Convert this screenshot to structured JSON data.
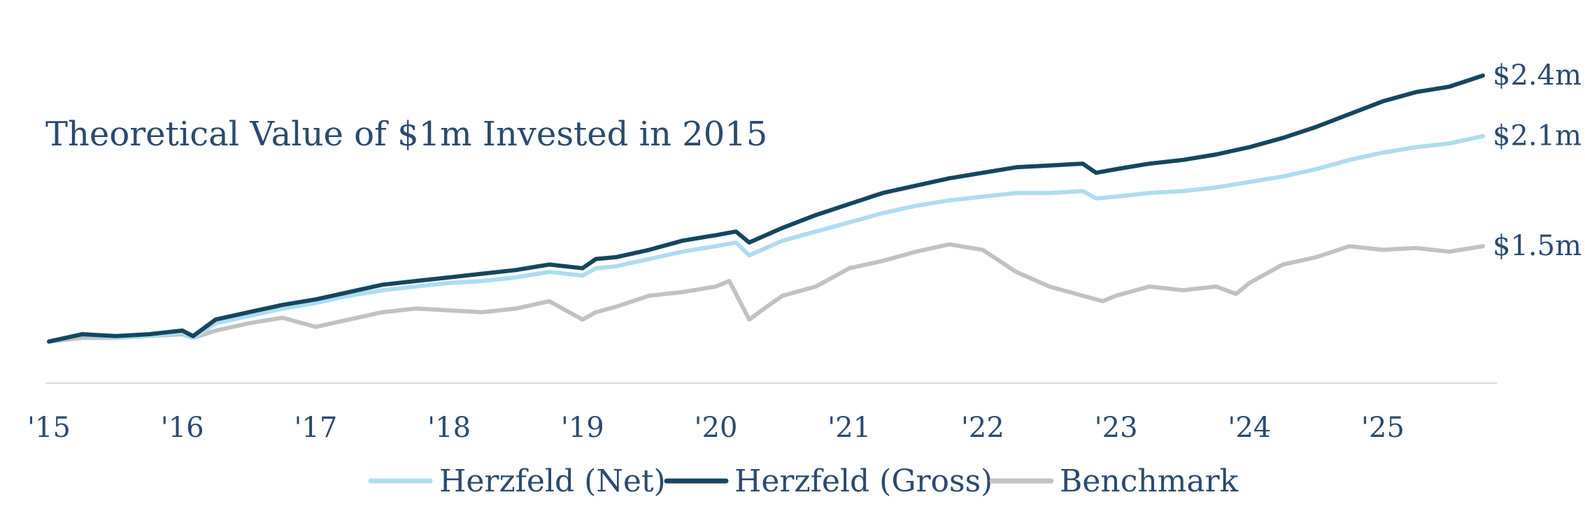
{
  "chart_data": {
    "type": "line",
    "title": "Theoretical Value of $1m Invested in 2015",
    "xlabel": "",
    "ylabel": "",
    "x_tick_labels": [
      "'15",
      "'16",
      "'17",
      "'18",
      "'19",
      "'20",
      "'21",
      "'22",
      "'23",
      "'24",
      "'25"
    ],
    "x_tick_years": [
      2015,
      2016,
      2017,
      2018,
      2019,
      2020,
      2021,
      2022,
      2023,
      2024,
      2025
    ],
    "x_range": [
      2015.0,
      2025.75
    ],
    "ylim": [
      0.85,
      2.5
    ],
    "grid": false,
    "legend_position": "bottom-center",
    "series": [
      {
        "name": "Herzfeld (Net)",
        "color": "#aedcf2",
        "end_label": "$2.1m",
        "points": [
          [
            2015.0,
            1.0
          ],
          [
            2015.25,
            1.04
          ],
          [
            2015.5,
            1.02
          ],
          [
            2015.75,
            1.03
          ],
          [
            2016.0,
            1.05
          ],
          [
            2016.08,
            1.02
          ],
          [
            2016.25,
            1.1
          ],
          [
            2016.5,
            1.14
          ],
          [
            2016.75,
            1.18
          ],
          [
            2017.0,
            1.21
          ],
          [
            2017.25,
            1.25
          ],
          [
            2017.5,
            1.28
          ],
          [
            2017.75,
            1.3
          ],
          [
            2018.0,
            1.32
          ],
          [
            2018.25,
            1.33
          ],
          [
            2018.5,
            1.35
          ],
          [
            2018.75,
            1.38
          ],
          [
            2019.0,
            1.36
          ],
          [
            2019.1,
            1.4
          ],
          [
            2019.25,
            1.41
          ],
          [
            2019.5,
            1.45
          ],
          [
            2019.75,
            1.49
          ],
          [
            2020.0,
            1.52
          ],
          [
            2020.15,
            1.54
          ],
          [
            2020.25,
            1.47
          ],
          [
            2020.5,
            1.55
          ],
          [
            2020.75,
            1.6
          ],
          [
            2021.0,
            1.65
          ],
          [
            2021.25,
            1.7
          ],
          [
            2021.5,
            1.74
          ],
          [
            2021.75,
            1.77
          ],
          [
            2022.0,
            1.79
          ],
          [
            2022.25,
            1.81
          ],
          [
            2022.5,
            1.81
          ],
          [
            2022.75,
            1.82
          ],
          [
            2022.85,
            1.78
          ],
          [
            2023.0,
            1.79
          ],
          [
            2023.25,
            1.81
          ],
          [
            2023.5,
            1.82
          ],
          [
            2023.75,
            1.84
          ],
          [
            2024.0,
            1.87
          ],
          [
            2024.25,
            1.9
          ],
          [
            2024.5,
            1.94
          ],
          [
            2024.75,
            1.99
          ],
          [
            2025.0,
            2.03
          ],
          [
            2025.25,
            2.06
          ],
          [
            2025.5,
            2.08
          ],
          [
            2025.75,
            2.12
          ]
        ]
      },
      {
        "name": "Herzfeld (Gross)",
        "color": "#15465f",
        "end_label": "$2.4m",
        "points": [
          [
            2015.0,
            1.0
          ],
          [
            2015.25,
            1.04
          ],
          [
            2015.5,
            1.03
          ],
          [
            2015.75,
            1.04
          ],
          [
            2016.0,
            1.06
          ],
          [
            2016.08,
            1.03
          ],
          [
            2016.25,
            1.12
          ],
          [
            2016.5,
            1.16
          ],
          [
            2016.75,
            1.2
          ],
          [
            2017.0,
            1.23
          ],
          [
            2017.25,
            1.27
          ],
          [
            2017.5,
            1.31
          ],
          [
            2017.75,
            1.33
          ],
          [
            2018.0,
            1.35
          ],
          [
            2018.25,
            1.37
          ],
          [
            2018.5,
            1.39
          ],
          [
            2018.75,
            1.42
          ],
          [
            2019.0,
            1.4
          ],
          [
            2019.1,
            1.45
          ],
          [
            2019.25,
            1.46
          ],
          [
            2019.5,
            1.5
          ],
          [
            2019.75,
            1.55
          ],
          [
            2020.0,
            1.58
          ],
          [
            2020.15,
            1.6
          ],
          [
            2020.25,
            1.54
          ],
          [
            2020.5,
            1.62
          ],
          [
            2020.75,
            1.69
          ],
          [
            2021.0,
            1.75
          ],
          [
            2021.25,
            1.81
          ],
          [
            2021.5,
            1.85
          ],
          [
            2021.75,
            1.89
          ],
          [
            2022.0,
            1.92
          ],
          [
            2022.25,
            1.95
          ],
          [
            2022.5,
            1.96
          ],
          [
            2022.75,
            1.97
          ],
          [
            2022.85,
            1.92
          ],
          [
            2023.0,
            1.94
          ],
          [
            2023.25,
            1.97
          ],
          [
            2023.5,
            1.99
          ],
          [
            2023.75,
            2.02
          ],
          [
            2024.0,
            2.06
          ],
          [
            2024.25,
            2.11
          ],
          [
            2024.5,
            2.17
          ],
          [
            2024.75,
            2.24
          ],
          [
            2025.0,
            2.31
          ],
          [
            2025.25,
            2.36
          ],
          [
            2025.5,
            2.39
          ],
          [
            2025.75,
            2.45
          ]
        ]
      },
      {
        "name": "Benchmark",
        "color": "#c2c2c2",
        "end_label": "$1.5m",
        "points": [
          [
            2015.0,
            1.0
          ],
          [
            2015.25,
            1.02
          ],
          [
            2015.5,
            1.02
          ],
          [
            2015.75,
            1.03
          ],
          [
            2016.0,
            1.04
          ],
          [
            2016.08,
            1.02
          ],
          [
            2016.25,
            1.06
          ],
          [
            2016.5,
            1.1
          ],
          [
            2016.75,
            1.13
          ],
          [
            2017.0,
            1.08
          ],
          [
            2017.25,
            1.12
          ],
          [
            2017.5,
            1.16
          ],
          [
            2017.75,
            1.18
          ],
          [
            2018.0,
            1.17
          ],
          [
            2018.25,
            1.16
          ],
          [
            2018.5,
            1.18
          ],
          [
            2018.75,
            1.22
          ],
          [
            2019.0,
            1.12
          ],
          [
            2019.1,
            1.16
          ],
          [
            2019.25,
            1.19
          ],
          [
            2019.5,
            1.25
          ],
          [
            2019.75,
            1.27
          ],
          [
            2020.0,
            1.3
          ],
          [
            2020.1,
            1.33
          ],
          [
            2020.25,
            1.12
          ],
          [
            2020.4,
            1.2
          ],
          [
            2020.5,
            1.25
          ],
          [
            2020.75,
            1.3
          ],
          [
            2021.0,
            1.4
          ],
          [
            2021.25,
            1.44
          ],
          [
            2021.5,
            1.49
          ],
          [
            2021.75,
            1.53
          ],
          [
            2022.0,
            1.5
          ],
          [
            2022.25,
            1.38
          ],
          [
            2022.5,
            1.3
          ],
          [
            2022.75,
            1.25
          ],
          [
            2022.9,
            1.22
          ],
          [
            2023.0,
            1.25
          ],
          [
            2023.25,
            1.3
          ],
          [
            2023.5,
            1.28
          ],
          [
            2023.75,
            1.3
          ],
          [
            2023.9,
            1.26
          ],
          [
            2024.0,
            1.32
          ],
          [
            2024.25,
            1.42
          ],
          [
            2024.5,
            1.46
          ],
          [
            2024.75,
            1.52
          ],
          [
            2025.0,
            1.5
          ],
          [
            2025.25,
            1.51
          ],
          [
            2025.5,
            1.49
          ],
          [
            2025.75,
            1.52
          ]
        ]
      }
    ],
    "legend": [
      {
        "label": "Herzfeld (Net)",
        "color": "#aedcf2"
      },
      {
        "label": "Herzfeld (Gross)",
        "color": "#15465f"
      },
      {
        "label": "Benchmark",
        "color": "#c2c2c2"
      }
    ]
  }
}
